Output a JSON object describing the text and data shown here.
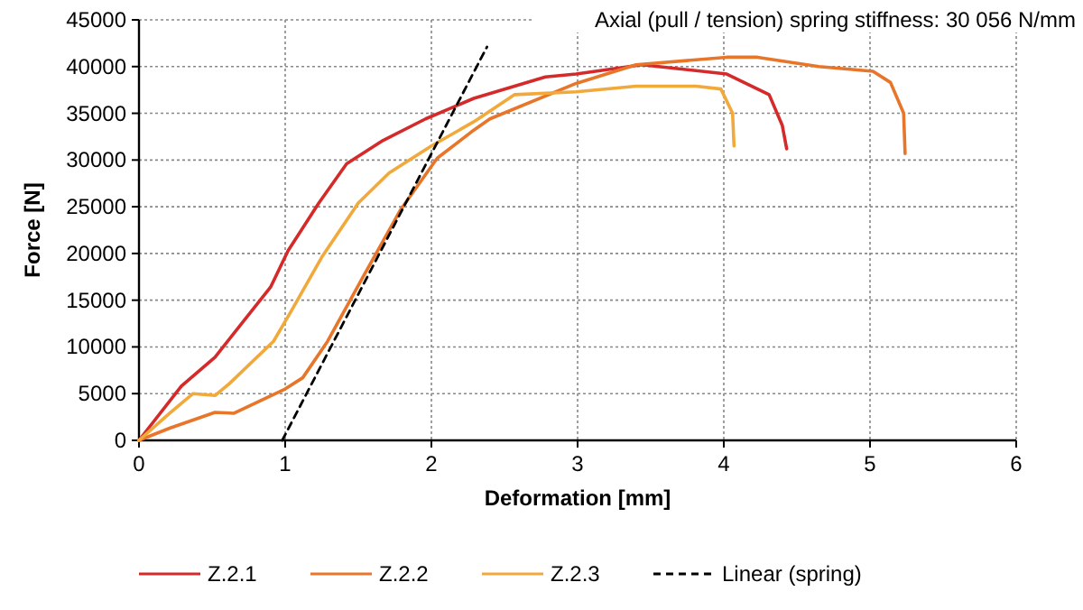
{
  "chart_data": {
    "type": "line",
    "xlabel": "Deformation [mm]",
    "ylabel": "Force [N]",
    "xlim": [
      0,
      6
    ],
    "xticks": [
      0,
      1,
      2,
      3,
      4,
      5,
      6
    ],
    "ylim": [
      0,
      45000
    ],
    "yticks": [
      0,
      5000,
      10000,
      15000,
      20000,
      25000,
      30000,
      35000,
      40000,
      45000
    ],
    "grid": true,
    "legend": "bottom",
    "annotations": [
      "Axial (pull / tension) spring stiffness: 30 056 N/mm"
    ],
    "series": [
      {
        "name": "Z.2.1",
        "color": "#d42a2a",
        "line_style": "solid",
        "x": [
          0,
          0.29,
          0.52,
          0.9,
          1.02,
          1.23,
          1.42,
          1.67,
          1.96,
          2.29,
          2.78,
          2.99,
          3.44,
          4.02,
          4.31,
          4.4,
          4.43
        ],
        "values": [
          0,
          5800,
          8900,
          16400,
          20300,
          25400,
          29600,
          32100,
          34400,
          36600,
          38900,
          39200,
          40200,
          39200,
          37000,
          33700,
          31200
        ]
      },
      {
        "name": "Z.2.2",
        "color": "#e8762a",
        "line_style": "solid",
        "x": [
          0,
          0.21,
          0.52,
          0.65,
          1.0,
          1.12,
          1.29,
          1.54,
          1.79,
          2.04,
          2.29,
          2.4,
          2.99,
          3.4,
          4.02,
          4.23,
          4.65,
          5.02,
          5.14,
          5.23,
          5.24
        ],
        "values": [
          0,
          1300,
          3000,
          2900,
          5500,
          6700,
          10600,
          17700,
          24700,
          30200,
          33200,
          34400,
          38200,
          40200,
          41000,
          41000,
          40000,
          39500,
          38300,
          35000,
          30700
        ]
      },
      {
        "name": "Z.2.3",
        "color": "#f2a93b",
        "line_style": "solid",
        "x": [
          0,
          0.21,
          0.37,
          0.52,
          0.62,
          0.92,
          1.04,
          1.25,
          1.5,
          1.71,
          2.0,
          2.29,
          2.57,
          2.99,
          3.4,
          3.81,
          3.98,
          4.06,
          4.07
        ],
        "values": [
          0,
          2900,
          5000,
          4800,
          6100,
          10600,
          13800,
          19600,
          25400,
          28600,
          31500,
          34100,
          37000,
          37300,
          37900,
          37900,
          37600,
          35000,
          31500
        ]
      },
      {
        "name": "Linear (spring)",
        "type": "line",
        "color": "#000000",
        "line_style": "dashed",
        "x": [
          0.98,
          2.38
        ],
        "values": [
          0,
          42100
        ]
      }
    ]
  }
}
